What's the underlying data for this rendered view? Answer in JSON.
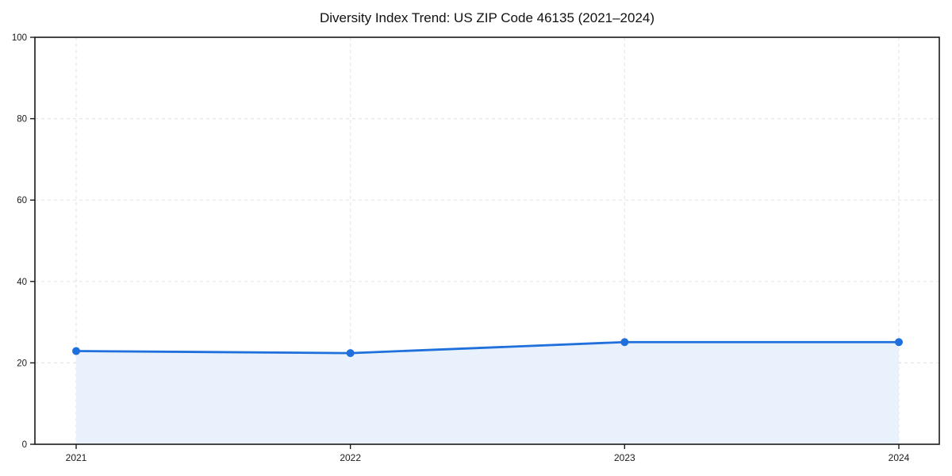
{
  "chart_data": {
    "type": "line",
    "title": "Diversity Index Trend: US ZIP Code 46135 (2021–2024)",
    "x": [
      "2021",
      "2022",
      "2023",
      "2024"
    ],
    "series": [
      {
        "name": "Diversity Index",
        "values": [
          22.9,
          22.4,
          25.1,
          25.1
        ]
      }
    ],
    "xlabel": "",
    "ylabel": "",
    "ylim": [
      0,
      100
    ],
    "yticks": [
      0,
      20,
      40,
      60,
      80,
      100
    ],
    "grid": true,
    "grid_style": "dashed",
    "legend": "none",
    "area_fill": true,
    "markers": true,
    "colors": {
      "line": "#1f6fdc",
      "marker": "#1f6fdc",
      "fill": "#e8f1fc",
      "grid": "#e6e6e6",
      "spine": "#1a1a1a",
      "text": "#1a1a1a",
      "background": "#ffffff"
    }
  }
}
